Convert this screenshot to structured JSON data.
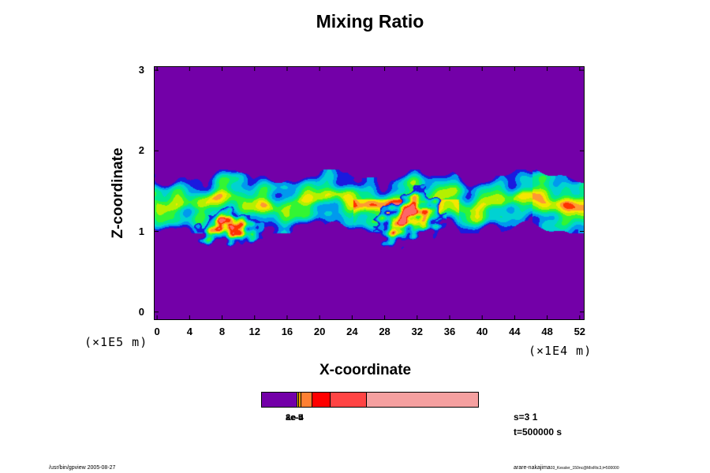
{
  "chart_data": {
    "type": "heatmap",
    "title": "Mixing Ratio",
    "xlabel": "X-coordinate",
    "ylabel": "Z-coordinate",
    "x_scale_label": "(×1E4 m)",
    "y_scale_label": "(×1E5 m)",
    "x_ticks": [
      0,
      4,
      8,
      12,
      16,
      20,
      24,
      28,
      32,
      36,
      40,
      44,
      48,
      52
    ],
    "y_ticks": [
      0,
      1,
      2,
      3
    ],
    "xlim": [
      -0.4,
      52.6
    ],
    "ylim": [
      -0.1,
      3.05
    ],
    "background_color": "#7300a8",
    "colormap": [
      "#7300a8",
      "#1a1adf",
      "#0099ee",
      "#00d2d2",
      "#00e890",
      "#33f533",
      "#b5f000",
      "#f5e600",
      "#ff9933",
      "#ff3300",
      "#ff6666",
      "#f5a0a0"
    ],
    "structures": [
      {
        "kind": "layer",
        "x_range": [
          -0.4,
          52.6
        ],
        "z_range": [
          1.08,
          1.68
        ]
      },
      {
        "kind": "blob",
        "x_range": [
          4.5,
          13
        ],
        "z_range": [
          0.8,
          1.25
        ]
      },
      {
        "kind": "blob",
        "x_range": [
          26.5,
          35.5
        ],
        "z_range": [
          0.85,
          1.5
        ]
      }
    ],
    "colorbar": {
      "colors": [
        "#7300a8",
        "#f0c000",
        "#ffa000",
        "#ff8033",
        "#ff0000",
        "#ff4444",
        "#f5a0a0"
      ],
      "fractions": [
        0.165,
        0.007,
        0.012,
        0.05,
        0.083,
        0.167,
        0.516
      ],
      "labels": [
        "2e-5",
        "8e-5",
        "1e-4"
      ]
    },
    "grid": false
  },
  "info": {
    "scale_text": "s=3 1",
    "time_text": "t=500000 s"
  },
  "footer": {
    "left": "/usr/bin/gpview 2005-08-27",
    "right": "arare-nakajima",
    "right_small": "03_Kessler_150nc@MixRtc3,t=500000"
  }
}
